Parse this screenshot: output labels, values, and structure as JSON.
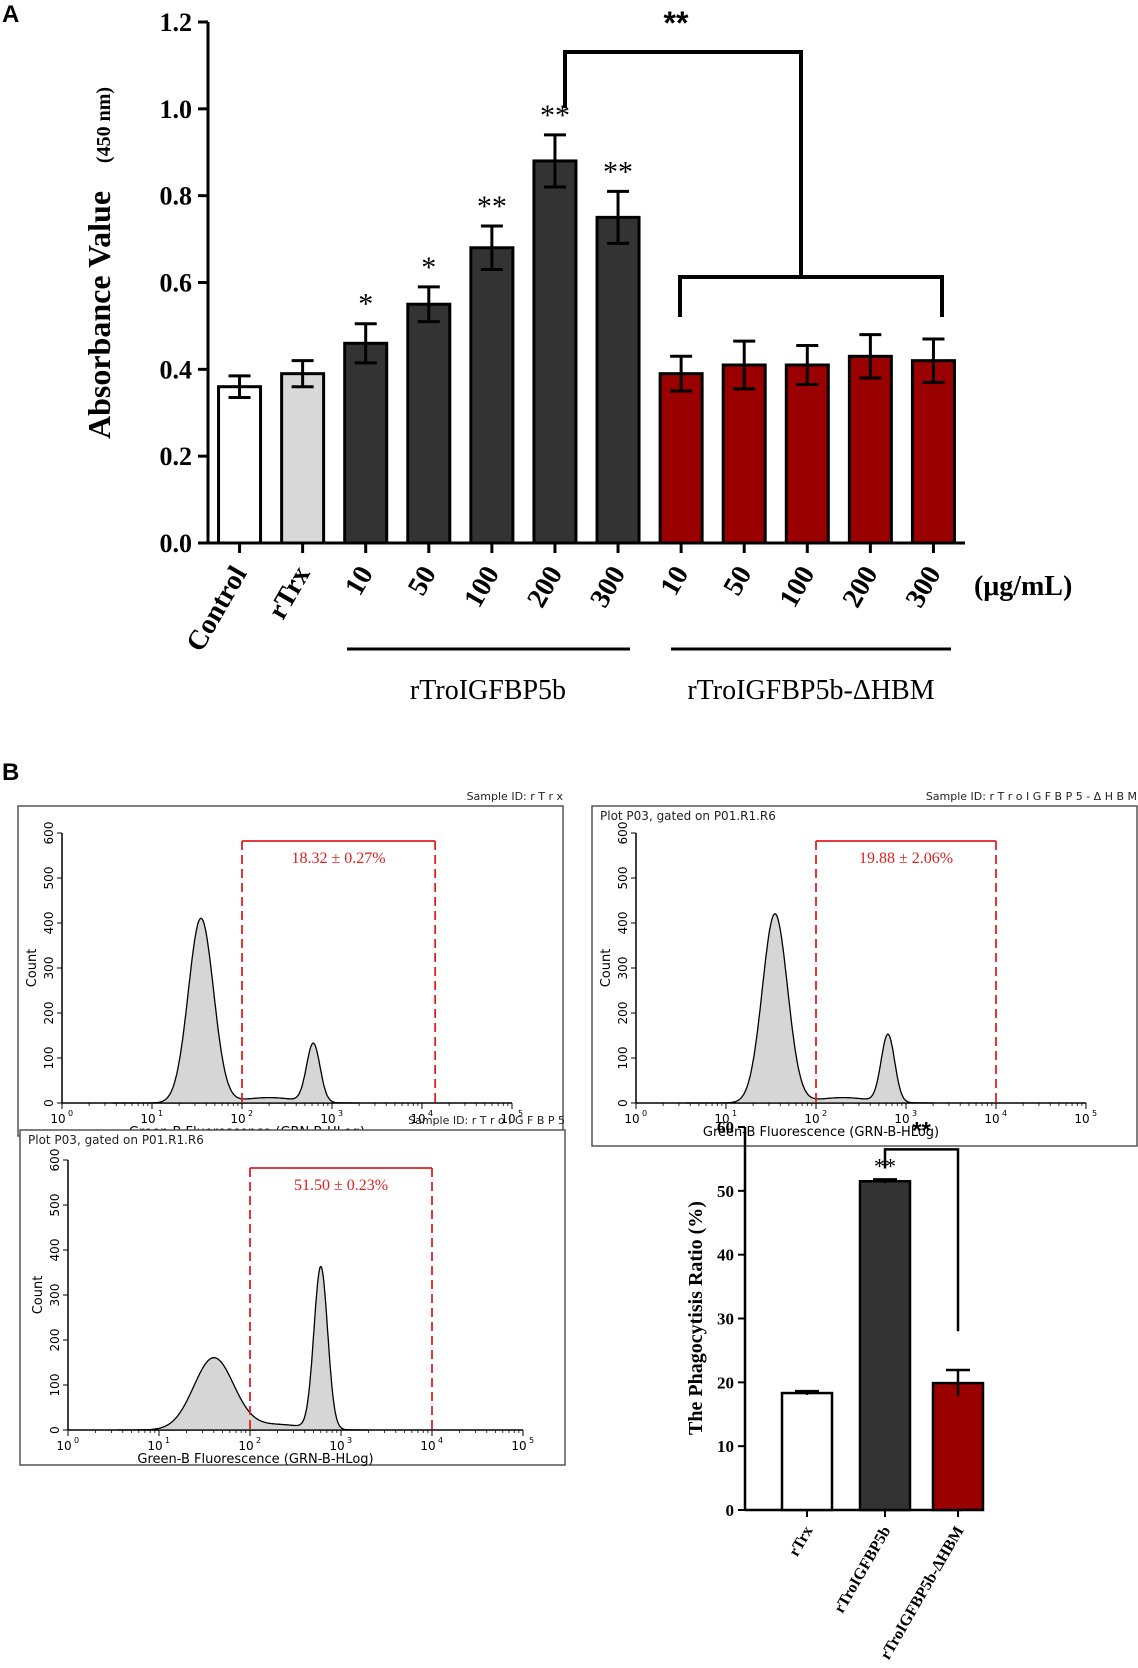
{
  "panel_a": {
    "label": "A",
    "ylabel_main": "Absorbance Value",
    "ylabel_unit": "(450 nm)",
    "unit_label": "(μg/mL)",
    "group1_label": "rTroIGFBP5b",
    "group2_label": "rTroIGFBP5b-ΔHBM",
    "bracket_sig": "**"
  },
  "panel_b": {
    "label": "B",
    "axis_xlabel": "Green-B Fluorescence (GRN-B-HLog)",
    "axis_ylabel": "Count",
    "gate_text": "Plot P03, gated on P01.R1.R6",
    "histograms": [
      {
        "sample_id": "Sample ID: r T r x",
        "percent": "18.32 ± 0.27%",
        "show_gate_text": false
      },
      {
        "sample_id": "Sample ID: r T r o I G F B P 5 - Δ H B M",
        "percent": "19.88 ± 2.06%",
        "show_gate_text": true
      },
      {
        "sample_id": "Sample ID: r T r o I G F B P 5",
        "percent": "51.50 ± 0.23%",
        "show_gate_text": true
      }
    ],
    "bar_title": "The Phagocytisis Ratio (%)",
    "bracket_sig": "**"
  },
  "chart_data": [
    {
      "type": "bar",
      "title": "",
      "ylabel": "Absorbance Value (450 nm)",
      "xlabel": "(μg/mL)",
      "ylim": [
        0,
        1.2
      ],
      "yticks": [
        "0.0",
        "0.2",
        "0.4",
        "0.6",
        "0.8",
        "1.0",
        "1.2"
      ],
      "categories": [
        "Control",
        "rTrx",
        "10",
        "50",
        "100",
        "200",
        "300",
        "10",
        "50",
        "100",
        "200",
        "300"
      ],
      "values": [
        0.36,
        0.39,
        0.46,
        0.55,
        0.68,
        0.88,
        0.75,
        0.39,
        0.41,
        0.41,
        0.43,
        0.42
      ],
      "errors": [
        0.025,
        0.03,
        0.045,
        0.04,
        0.05,
        0.06,
        0.06,
        0.04,
        0.055,
        0.045,
        0.05,
        0.05
      ],
      "significance": [
        "",
        "",
        "*",
        "*",
        "**",
        "**",
        "**",
        "",
        "",
        "",
        "",
        ""
      ],
      "colors": [
        "#ffffff",
        "#d9d9d9",
        "#333333",
        "#333333",
        "#333333",
        "#333333",
        "#333333",
        "#9a0000",
        "#9a0000",
        "#9a0000",
        "#9a0000",
        "#9a0000"
      ],
      "groups": [
        {
          "name": "rTroIGFBP5b",
          "categories": [
            "10",
            "50",
            "100",
            "200",
            "300"
          ]
        },
        {
          "name": "rTroIGFBP5b-ΔHBM",
          "categories": [
            "10",
            "50",
            "100",
            "200",
            "300"
          ]
        }
      ]
    },
    {
      "type": "bar",
      "title": "",
      "ylabel": "The Phagocytisis Ratio (%)",
      "ylim": [
        0,
        60
      ],
      "yticks": [
        "0",
        "10",
        "20",
        "30",
        "40",
        "50",
        "60"
      ],
      "categories": [
        "rTrx",
        "rTroIGFBP5b",
        "rTroIGFBP5b-ΔHBM"
      ],
      "values": [
        18.32,
        51.5,
        19.88
      ],
      "errors": [
        0.27,
        0.23,
        2.06
      ],
      "significance": [
        "",
        "**",
        ""
      ],
      "colors": [
        "#ffffff",
        "#333333",
        "#9a0000"
      ]
    }
  ],
  "histograms_data": [
    {
      "type": "histogram",
      "gate_range": [
        100,
        14000
      ],
      "peaks": [
        {
          "center": 35,
          "height": 410
        },
        {
          "center": 620,
          "height": 130
        }
      ],
      "xticks": [
        "10",
        "10",
        "10",
        "10",
        "10",
        "10"
      ],
      "xexp": [
        "0",
        "1",
        "2",
        "3",
        "4",
        "5"
      ],
      "ylim": [
        0,
        600
      ],
      "yticks": [
        "0",
        "100",
        "200",
        "300",
        "400",
        "500",
        "600"
      ]
    },
    {
      "type": "histogram",
      "gate_range": [
        100,
        10000
      ],
      "peaks": [
        {
          "center": 35,
          "height": 420
        },
        {
          "center": 630,
          "height": 150
        }
      ],
      "xticks": [
        "10",
        "10",
        "10",
        "10",
        "10",
        "10"
      ],
      "xexp": [
        "0",
        "1",
        "2",
        "3",
        "4",
        "5"
      ],
      "ylim": [
        0,
        600
      ],
      "yticks": [
        "0",
        "100",
        "200",
        "300",
        "400",
        "500",
        "600"
      ]
    },
    {
      "type": "histogram",
      "gate_range": [
        100,
        10000
      ],
      "peaks": [
        {
          "center": 40,
          "height": 160
        },
        {
          "center": 600,
          "height": 360
        }
      ],
      "xticks": [
        "10",
        "10",
        "10",
        "10",
        "10",
        "10"
      ],
      "xexp": [
        "0",
        "1",
        "2",
        "3",
        "4",
        "5"
      ],
      "ylim": [
        0,
        600
      ],
      "yticks": [
        "0",
        "100",
        "200",
        "300",
        "400",
        "500",
        "600"
      ]
    }
  ]
}
